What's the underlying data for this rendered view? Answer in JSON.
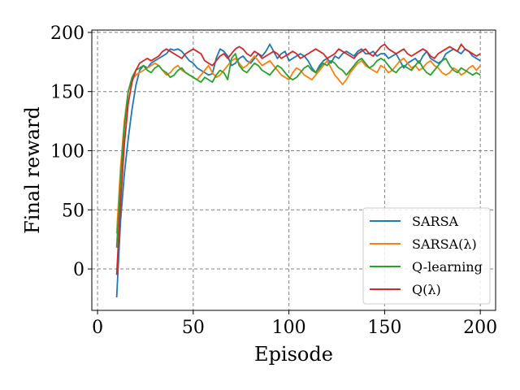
{
  "chart_data": {
    "type": "line",
    "xlabel": "Episode",
    "ylabel": "Final reward",
    "xlim": [
      -3,
      208
    ],
    "ylim": [
      -35,
      202
    ],
    "xticks": [
      0,
      50,
      100,
      150,
      200
    ],
    "yticks": [
      0,
      50,
      100,
      150,
      200
    ],
    "grid": true,
    "legend_position": "lower-right",
    "x": [
      10,
      12,
      14,
      16,
      18,
      20,
      22,
      24,
      26,
      28,
      30,
      32,
      34,
      36,
      38,
      40,
      42,
      44,
      46,
      48,
      50,
      52,
      54,
      56,
      58,
      60,
      62,
      64,
      66,
      68,
      70,
      72,
      74,
      76,
      78,
      80,
      82,
      84,
      86,
      88,
      90,
      92,
      94,
      96,
      98,
      100,
      102,
      104,
      106,
      108,
      110,
      112,
      114,
      116,
      118,
      120,
      122,
      124,
      126,
      128,
      130,
      132,
      134,
      136,
      138,
      140,
      142,
      144,
      146,
      148,
      150,
      152,
      154,
      156,
      158,
      160,
      162,
      164,
      166,
      168,
      170,
      172,
      174,
      176,
      178,
      180,
      182,
      184,
      186,
      188,
      190,
      192,
      194,
      196,
      198,
      200
    ],
    "series": [
      {
        "name": "SARSA",
        "color": "#1f77b4",
        "values": [
          -24,
          40,
          80,
          110,
          135,
          155,
          168,
          172,
          170,
          174,
          176,
          178,
          180,
          182,
          186,
          185,
          186,
          184,
          180,
          176,
          174,
          170,
          168,
          166,
          164,
          165,
          178,
          186,
          184,
          180,
          172,
          174,
          178,
          180,
          176,
          174,
          178,
          182,
          180,
          184,
          190,
          184,
          178,
          182,
          184,
          176,
          178,
          180,
          182,
          180,
          176,
          170,
          166,
          172,
          176,
          178,
          174,
          180,
          178,
          182,
          184,
          182,
          180,
          184,
          186,
          182,
          182,
          184,
          180,
          182,
          182,
          178,
          180,
          182,
          176,
          170,
          174,
          176,
          178,
          174,
          180,
          184,
          178,
          176,
          174,
          176,
          182,
          184,
          186,
          184,
          182,
          186,
          184,
          180,
          178,
          176
        ]
      },
      {
        "name": "SARSA(λ)",
        "color": "#ff7f0e",
        "values": [
          30,
          85,
          125,
          150,
          160,
          164,
          166,
          168,
          170,
          172,
          174,
          172,
          168,
          164,
          166,
          170,
          172,
          168,
          166,
          164,
          162,
          160,
          164,
          168,
          172,
          166,
          162,
          164,
          168,
          172,
          176,
          178,
          174,
          170,
          172,
          176,
          180,
          176,
          172,
          174,
          176,
          172,
          168,
          164,
          162,
          160,
          166,
          170,
          168,
          164,
          162,
          160,
          164,
          168,
          172,
          176,
          170,
          164,
          160,
          156,
          160,
          166,
          170,
          174,
          176,
          172,
          170,
          168,
          166,
          172,
          170,
          166,
          168,
          172,
          176,
          178,
          174,
          170,
          172,
          168,
          170,
          174,
          176,
          172,
          170,
          166,
          164,
          166,
          170,
          168,
          164,
          166,
          170,
          172,
          168,
          172
        ]
      },
      {
        "name": "Q-learning",
        "color": "#2ca02c",
        "values": [
          18,
          75,
          120,
          150,
          162,
          168,
          170,
          172,
          168,
          166,
          170,
          172,
          168,
          166,
          162,
          164,
          168,
          170,
          166,
          164,
          162,
          160,
          158,
          162,
          160,
          158,
          164,
          168,
          166,
          160,
          178,
          182,
          172,
          168,
          166,
          170,
          174,
          172,
          168,
          166,
          164,
          168,
          172,
          170,
          166,
          162,
          160,
          162,
          166,
          170,
          172,
          168,
          166,
          170,
          174,
          172,
          176,
          174,
          170,
          168,
          164,
          168,
          172,
          176,
          178,
          174,
          170,
          172,
          176,
          178,
          176,
          172,
          168,
          166,
          170,
          172,
          170,
          168,
          172,
          176,
          170,
          166,
          164,
          168,
          172,
          176,
          178,
          172,
          168,
          166,
          170,
          168,
          166,
          164,
          166,
          164
        ]
      },
      {
        "name": "Q(λ)",
        "color": "#d62728",
        "values": [
          -5,
          55,
          105,
          140,
          158,
          168,
          174,
          176,
          178,
          176,
          178,
          180,
          184,
          186,
          184,
          182,
          180,
          178,
          182,
          184,
          186,
          184,
          182,
          176,
          174,
          172,
          176,
          180,
          182,
          178,
          182,
          186,
          188,
          186,
          182,
          180,
          184,
          182,
          178,
          180,
          182,
          184,
          182,
          178,
          180,
          182,
          184,
          182,
          178,
          180,
          182,
          184,
          186,
          184,
          182,
          178,
          180,
          182,
          186,
          184,
          182,
          180,
          178,
          182,
          184,
          186,
          182,
          180,
          184,
          188,
          190,
          186,
          184,
          182,
          184,
          186,
          182,
          180,
          182,
          184,
          186,
          184,
          180,
          178,
          182,
          184,
          186,
          188,
          186,
          184,
          190,
          186,
          184,
          182,
          180,
          182
        ]
      }
    ]
  }
}
